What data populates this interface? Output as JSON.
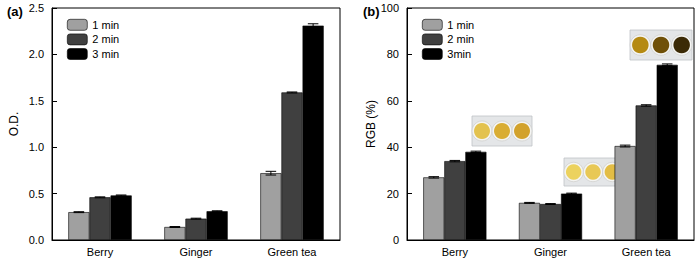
{
  "chart_data": [
    {
      "type": "bar",
      "title": "(a)",
      "y_label": "O.D.",
      "categories": [
        "Berry",
        "Ginger",
        "Green tea"
      ],
      "series": [
        {
          "name": "1 min",
          "color": "#a0a0a0",
          "values": [
            0.3,
            0.14,
            0.72
          ],
          "errors": [
            0.005,
            0.005,
            0.02
          ]
        },
        {
          "name": "2 min",
          "color": "#404040",
          "values": [
            0.46,
            0.23,
            1.59
          ],
          "errors": [
            0.005,
            0.005,
            0.005
          ]
        },
        {
          "name": "3 min",
          "color": "#000000",
          "values": [
            0.48,
            0.31,
            2.31
          ],
          "errors": [
            0.005,
            0.005,
            0.02
          ]
        }
      ],
      "ylim": [
        0,
        2.5
      ],
      "yticks": [
        {
          "value": 0,
          "label": "0.0"
        },
        0.5,
        {
          "value": 1,
          "label": "1.0"
        },
        1.5,
        {
          "value": 2,
          "label": "2.0"
        },
        2.5
      ],
      "legend": "upper left",
      "grid": false
    },
    {
      "type": "bar",
      "title": "(b)",
      "y_label": "RGB (%)",
      "categories": [
        "Berry",
        "Ginger",
        "Green tea"
      ],
      "series": [
        {
          "name": "1 min",
          "color": "#a0a0a0",
          "values": [
            27,
            16,
            40.5
          ],
          "errors": [
            0.3,
            0.2,
            0.4
          ]
        },
        {
          "name": "2 min",
          "color": "#404040",
          "values": [
            34,
            15.5,
            58
          ],
          "errors": [
            0.3,
            0.2,
            0.3
          ]
        },
        {
          "name": "3min",
          "color": "#000000",
          "values": [
            38,
            20,
            75.5
          ],
          "errors": [
            0.3,
            0.2,
            0.4
          ]
        }
      ],
      "ylim": [
        0,
        100
      ],
      "yticks": [
        0,
        20,
        40,
        60,
        80,
        100
      ],
      "legend": "upper left",
      "grid": false
    }
  ]
}
